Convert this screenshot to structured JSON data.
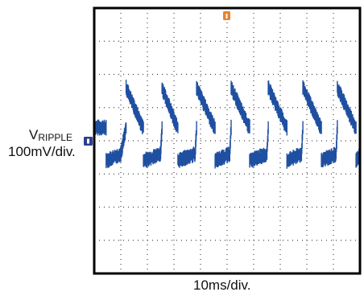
{
  "chart_data": {
    "type": "line",
    "title": "",
    "channel_label_main": "V",
    "channel_label_sub": "RIPPLE",
    "vertical_scale": "100mV/div.",
    "horizontal_scale": "10ms/div.",
    "grid": {
      "divisions_x": 10,
      "divisions_y": 8,
      "style": "dotted"
    },
    "xlim": [
      0,
      100
    ],
    "ylim": [
      -400,
      400
    ],
    "x_unit": "ms",
    "y_unit": "mV",
    "trigger_marker": {
      "x": 50
    },
    "ground_marker": {
      "y": 0
    },
    "series": [
      {
        "trace_color": "#1f4fa0",
        "noise_band_mV": 35,
        "points": [
          [
            0,
            40
          ],
          [
            4.5,
            40
          ],
          [
            4.5,
            -60
          ],
          [
            10,
            -40
          ],
          [
            12,
            40
          ],
          [
            12,
            160
          ],
          [
            18,
            45
          ],
          [
            18.5,
            40
          ],
          [
            18.5,
            -60
          ],
          [
            25,
            -40
          ],
          [
            25.5,
            40
          ],
          [
            25.5,
            160
          ],
          [
            31,
            45
          ],
          [
            31.5,
            40
          ],
          [
            31.5,
            -60
          ],
          [
            38,
            -40
          ],
          [
            38.5,
            40
          ],
          [
            38.5,
            160
          ],
          [
            45,
            45
          ],
          [
            45.5,
            40
          ],
          [
            45.5,
            -60
          ],
          [
            51,
            -40
          ],
          [
            51.5,
            40
          ],
          [
            51.5,
            160
          ],
          [
            58,
            45
          ],
          [
            58.5,
            40
          ],
          [
            58.5,
            -60
          ],
          [
            65,
            -40
          ],
          [
            65.5,
            40
          ],
          [
            65.5,
            160
          ],
          [
            72,
            45
          ],
          [
            72.5,
            40
          ],
          [
            72.5,
            -60
          ],
          [
            78,
            -40
          ],
          [
            78.5,
            40
          ],
          [
            78.5,
            160
          ],
          [
            85,
            45
          ],
          [
            85.5,
            40
          ],
          [
            85.5,
            -60
          ],
          [
            91,
            -40
          ],
          [
            91.5,
            40
          ],
          [
            91.5,
            160
          ],
          [
            98,
            45
          ],
          [
            98.5,
            40
          ],
          [
            98.5,
            -60
          ],
          [
            100,
            -40
          ]
        ]
      }
    ]
  },
  "colors": {
    "trace": "#1f4fa0",
    "trigger": "#e8822e",
    "ground": "#2b3f8f",
    "frame": "#000000",
    "grid": "#444444"
  }
}
